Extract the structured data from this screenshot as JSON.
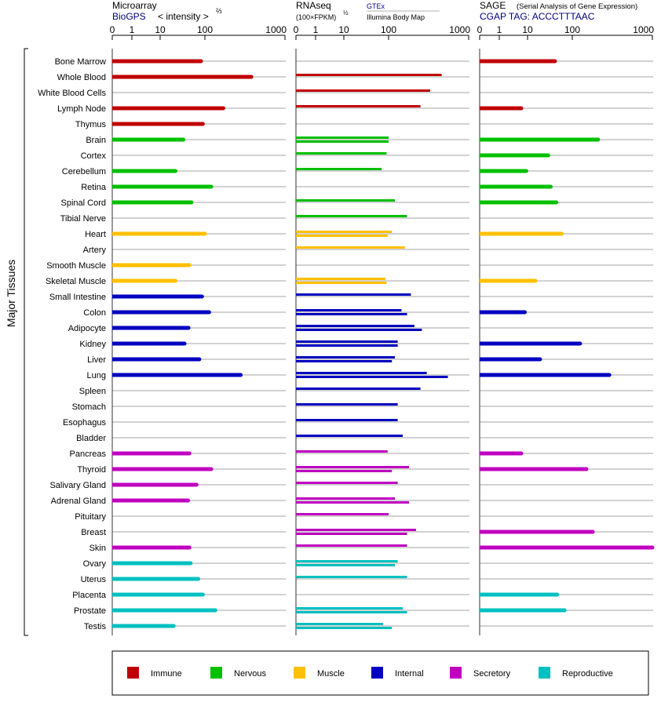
{
  "panels": [
    {
      "title": "Microarray",
      "source": "BioGPS",
      "unit": "< intensity >",
      "unit_exp": "⅔",
      "ticks": [
        "0",
        "1",
        "10",
        "100",
        "1000"
      ]
    },
    {
      "title": "RNAseq",
      "source_a": "GTEx",
      "source_b": "Illumina Body Map",
      "unit": "(100×FPKM)",
      "unit_exp": "½",
      "ticks": [
        "0",
        "1",
        "10",
        "100",
        "1000"
      ]
    },
    {
      "title": "SAGE",
      "subtitle": "(Serial Analysis of Gene Expression)",
      "source": "CGAP TAG: ACCCTTTAAC",
      "ticks": [
        "0",
        "1",
        "10",
        "100",
        "1000"
      ]
    }
  ],
  "y_group_label": "Major Tissues",
  "colors": {
    "immune": "#c00000",
    "nervous": "#00c000",
    "muscle": "#ffc000",
    "internal": "#0000c0",
    "secretory": "#c000c0",
    "reproductive": "#00c0c0",
    "gtex_label": "#000080",
    "source_label": "#000080"
  },
  "legend": [
    {
      "key": "immune",
      "label": "Immune"
    },
    {
      "key": "nervous",
      "label": "Nervous"
    },
    {
      "key": "muscle",
      "label": "Muscle"
    },
    {
      "key": "internal",
      "label": "Internal"
    },
    {
      "key": "secretory",
      "label": "Secretory"
    },
    {
      "key": "reproductive",
      "label": "Reproductive"
    }
  ],
  "chart_data": {
    "type": "bar",
    "orientation": "horizontal",
    "x_scale": "log-like (0, 1, 10, 100, 1000)",
    "xlim": [
      0,
      1000
    ],
    "categories": [
      "Bone Marrow",
      "Whole Blood",
      "White Blood Cells",
      "Lymph Node",
      "Thymus",
      "Brain",
      "Cortex",
      "Cerebellum",
      "Retina",
      "Spinal Cord",
      "Tibial Nerve",
      "Heart",
      "Artery",
      "Smooth Muscle",
      "Skeletal Muscle",
      "Small Intestine",
      "Colon",
      "Adipocyte",
      "Kidney",
      "Liver",
      "Lung",
      "Spleen",
      "Stomach",
      "Esophagus",
      "Bladder",
      "Pancreas",
      "Thyroid",
      "Salivary Gland",
      "Adrenal Gland",
      "Pituitary",
      "Breast",
      "Skin",
      "Ovary",
      "Uterus",
      "Placenta",
      "Prostate",
      "Testis"
    ],
    "groups": [
      "immune",
      "immune",
      "immune",
      "immune",
      "immune",
      "nervous",
      "nervous",
      "nervous",
      "nervous",
      "nervous",
      "nervous",
      "muscle",
      "muscle",
      "muscle",
      "muscle",
      "internal",
      "internal",
      "internal",
      "internal",
      "internal",
      "internal",
      "internal",
      "internal",
      "internal",
      "internal",
      "secretory",
      "secretory",
      "secretory",
      "secretory",
      "secretory",
      "secretory",
      "secretory",
      "reproductive",
      "reproductive",
      "reproductive",
      "reproductive",
      "reproductive"
    ],
    "series": [
      {
        "name": "Microarray",
        "values": [
          82,
          380,
          null,
          170,
          90,
          33,
          null,
          22,
          120,
          50,
          null,
          100,
          null,
          45,
          22,
          86,
          113,
          43,
          35,
          75,
          280,
          null,
          null,
          null,
          null,
          45,
          120,
          65,
          42,
          null,
          null,
          45,
          48,
          71,
          90,
          135,
          20
        ]
      },
      {
        "name": "GTEx",
        "values": [
          null,
          460,
          330,
          250,
          null,
          100,
          90,
          70,
          null,
          120,
          170,
          110,
          160,
          null,
          85,
          190,
          145,
          210,
          130,
          120,
          300,
          250,
          130,
          130,
          150,
          95,
          180,
          130,
          120,
          100,
          220,
          170,
          130,
          170,
          null,
          150,
          75
        ]
      },
      {
        "name": "Illumina Body Map",
        "values": [
          null,
          null,
          null,
          null,
          null,
          100,
          null,
          null,
          null,
          null,
          null,
          95,
          null,
          null,
          90,
          null,
          170,
          260,
          130,
          110,
          550,
          null,
          null,
          null,
          null,
          null,
          110,
          null,
          180,
          null,
          170,
          null,
          120,
          null,
          null,
          170,
          110
        ]
      },
      {
        "name": "SAGE",
        "values": [
          41,
          null,
          null,
          6,
          null,
          210,
          29,
          9,
          33,
          44,
          null,
          58,
          null,
          null,
          15,
          null,
          8,
          null,
          125,
          19,
          290,
          null,
          null,
          null,
          null,
          6,
          150,
          null,
          null,
          null,
          180,
          1000,
          null,
          null,
          46,
          67,
          null
        ]
      }
    ]
  }
}
